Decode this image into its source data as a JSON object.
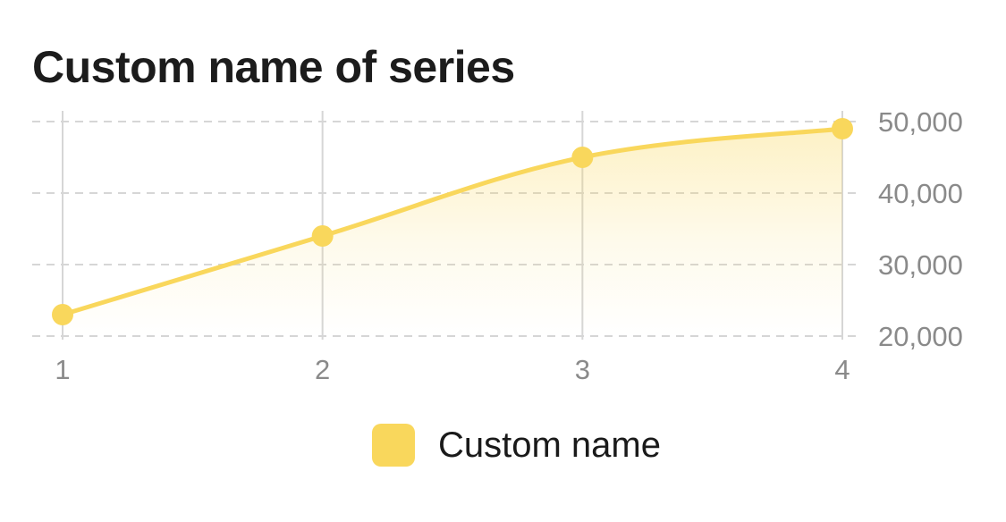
{
  "chart_data": {
    "type": "line",
    "title": "Custom name of series",
    "xlabel": "",
    "ylabel": "",
    "categories": [
      "1",
      "2",
      "3",
      "4"
    ],
    "series": [
      {
        "name": "Custom name",
        "values": [
          23000,
          34000,
          45000,
          49000
        ]
      }
    ],
    "ylim": [
      20000,
      50000
    ],
    "yticks": [
      "20,000",
      "30,000",
      "40,000",
      "50,000"
    ],
    "y_axis_side": "right",
    "grid": true,
    "area_fill": true,
    "legend_position": "bottom",
    "colors": {
      "series": "#f9d75c",
      "grid": "#d6d6d6",
      "tick_text": "#8a8a8a",
      "title": "#1c1c1c"
    }
  }
}
